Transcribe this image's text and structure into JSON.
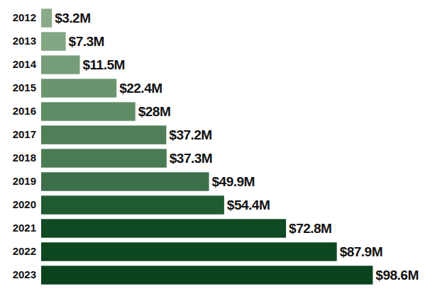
{
  "chart_data": {
    "type": "bar",
    "orientation": "horizontal",
    "categories": [
      "2012",
      "2013",
      "2014",
      "2015",
      "2016",
      "2017",
      "2018",
      "2019",
      "2020",
      "2021",
      "2022",
      "2023"
    ],
    "values": [
      3.2,
      7.3,
      11.5,
      22.4,
      28,
      37.2,
      37.3,
      49.9,
      54.4,
      72.8,
      87.9,
      98.6
    ],
    "value_labels": [
      "$3.2M",
      "$7.3M",
      "$11.5M",
      "$22.4M",
      "$28M",
      "$37.2M",
      "$37.3M",
      "$49.9M",
      "$54.4M",
      "$72.8M",
      "$87.9M",
      "$98.6M"
    ],
    "colors": [
      "#8aab8a",
      "#83a683",
      "#769d79",
      "#6a946e",
      "#5e8c64",
      "#4e7f57",
      "#4a7c54",
      "#3d704a",
      "#1f5a30",
      "#0f4a22",
      "#0c4720",
      "#0a431d"
    ],
    "xlim": [
      0,
      100
    ],
    "data_labels": true,
    "tick_labels": "y"
  }
}
